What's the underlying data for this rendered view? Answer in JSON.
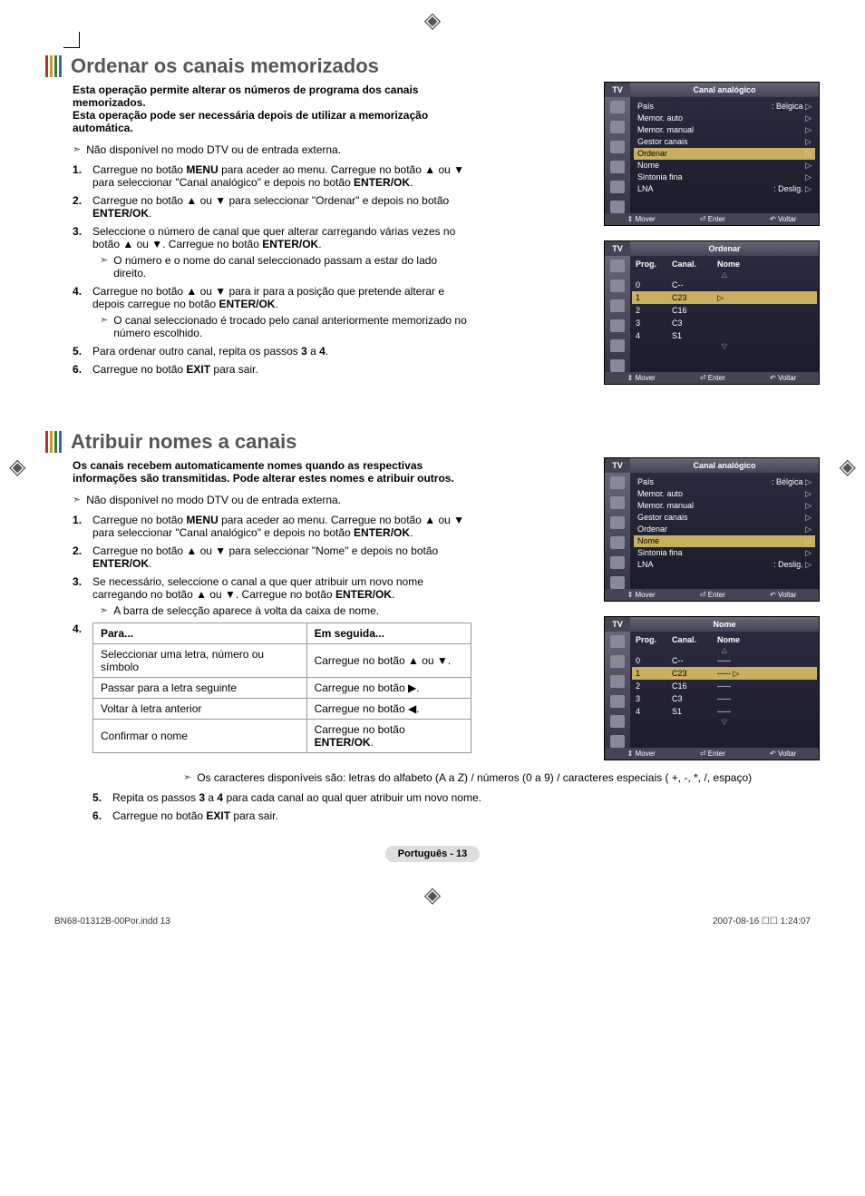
{
  "registration_glyph": "◈",
  "section1": {
    "title": "Ordenar os canais memorizados",
    "intro": "Esta operação permite alterar os números de programa dos canais memorizados.\nEsta operação pode ser necessária depois de utilizar a memorização automática.",
    "note": "Não disponível no modo DTV ou de entrada externa.",
    "steps": [
      {
        "html": "Carregue no botão <b>MENU</b> para aceder ao menu. Carregue no botão ▲ ou ▼ para seleccionar \"Canal analógico\" e depois no botão <b>ENTER/OK</b>."
      },
      {
        "html": "Carregue no botão ▲ ou ▼ para seleccionar \"Ordenar\" e depois no botão <b>ENTER/OK</b>."
      },
      {
        "html": "Seleccione o número de canal que quer alterar carregando várias vezes no botão ▲ ou ▼. Carregue no botão <b>ENTER/OK</b>.",
        "sub": "O número e o nome do canal seleccionado passam a estar do lado direito."
      },
      {
        "html": "Carregue no botão ▲ ou ▼ para ir para a posição que pretende alterar e depois carregue no botão <b>ENTER/OK</b>.",
        "sub": "O canal seleccionado é trocado pelo canal anteriormente memorizado no número escolhido."
      },
      {
        "html": "Para ordenar outro canal, repita os passos <b>3</b> a <b>4</b>."
      },
      {
        "html": "Carregue no botão <b>EXIT</b> para sair."
      }
    ],
    "menu1": {
      "tv": "TV",
      "title": "Canal analógico",
      "rows": [
        [
          "País",
          ": Bélgica"
        ],
        [
          "Memor. auto",
          ""
        ],
        [
          "Memor. manual",
          ""
        ],
        [
          "Gestor canais",
          ""
        ],
        [
          "Ordenar",
          ""
        ],
        [
          "Nome",
          ""
        ],
        [
          "Sintonia fina",
          ""
        ],
        [
          "LNA",
          ": Deslig."
        ]
      ],
      "highlight_index": 4,
      "footer": [
        "⇕ Mover",
        "⏎ Enter",
        "↶ Voltar"
      ]
    },
    "menu2": {
      "tv": "TV",
      "title": "Ordenar",
      "head": [
        "Prog.",
        "Canal.",
        "Nome"
      ],
      "rows": [
        [
          "0",
          "C--",
          ""
        ],
        [
          "1",
          "C23",
          ""
        ],
        [
          "2",
          "C16",
          ""
        ],
        [
          "3",
          "C3",
          ""
        ],
        [
          "4",
          "S1",
          ""
        ]
      ],
      "highlight_index": 1,
      "footer": [
        "⇕ Mover",
        "⏎ Enter",
        "↶ Voltar"
      ]
    }
  },
  "section2": {
    "title": "Atribuir nomes a canais",
    "intro": "Os canais recebem automaticamente nomes quando as respectivas informações são transmitidas. Pode alterar estes nomes e atribuir outros.",
    "note": "Não disponível no modo DTV ou de entrada externa.",
    "steps": [
      {
        "html": "Carregue no botão <b>MENU</b> para aceder ao menu. Carregue no botão ▲ ou ▼ para seleccionar \"Canal analógico\" e depois no botão <b>ENTER/OK</b>."
      },
      {
        "html": "Carregue no botão ▲ ou ▼ para seleccionar \"Nome\" e depois no botão <b>ENTER/OK</b>."
      },
      {
        "html": "Se necessário, seleccione o canal a que quer atribuir um novo nome carregando no botão ▲ ou ▼. Carregue no botão <b>ENTER/OK</b>.",
        "sub": "A barra de selecção aparece à volta da caixa de nome."
      }
    ],
    "table": {
      "head": [
        "Para...",
        "Em seguida..."
      ],
      "rows": [
        [
          "Seleccionar uma letra, número ou símbolo",
          "Carregue no botão ▲ ou ▼."
        ],
        [
          "Passar para a letra seguinte",
          "Carregue no botão ▶."
        ],
        [
          "Voltar à letra anterior",
          "Carregue no botão ◀."
        ],
        [
          "Confirmar o nome",
          "Carregue no botão <b>ENTER/OK</b>."
        ]
      ]
    },
    "after_table_note": "Os caracteres disponíveis são: letras do alfabeto (A a Z) / números (0 a 9) / caracteres especiais ( +, -, *, /, espaço)",
    "steps_after": [
      {
        "html": "Repita os passos <b>3</b> a <b>4</b> para cada canal ao qual quer atribuir um novo nome."
      },
      {
        "html": "Carregue no botão <b>EXIT</b> para sair."
      }
    ],
    "menu1": {
      "tv": "TV",
      "title": "Canal analógico",
      "rows": [
        [
          "País",
          ": Bélgica"
        ],
        [
          "Memor. auto",
          ""
        ],
        [
          "Memor. manual",
          ""
        ],
        [
          "Gestor canais",
          ""
        ],
        [
          "Ordenar",
          ""
        ],
        [
          "Nome",
          ""
        ],
        [
          "Sintonia fina",
          ""
        ],
        [
          "LNA",
          ": Deslig."
        ]
      ],
      "highlight_index": 5,
      "footer": [
        "⇕ Mover",
        "⏎ Enter",
        "↶ Voltar"
      ]
    },
    "menu2": {
      "tv": "TV",
      "title": "Nome",
      "head": [
        "Prog.",
        "Canal.",
        "Nome"
      ],
      "rows": [
        [
          "0",
          "C--",
          "-----"
        ],
        [
          "1",
          "C23",
          "-----"
        ],
        [
          "2",
          "C16",
          "-----"
        ],
        [
          "3",
          "C3",
          "-----"
        ],
        [
          "4",
          "S1",
          "-----"
        ]
      ],
      "highlight_index": 1,
      "footer": [
        "⇕ Mover",
        "⏎ Enter",
        "↶ Voltar"
      ]
    }
  },
  "page_badge": "Português - 13",
  "footer": {
    "left": "BN68-01312B-00Por.indd   13",
    "right": "2007-08-16   ☐☐ 1:24:07"
  },
  "colors": {
    "title_gray": "#555555",
    "menu_bg_top": "#2c2c40",
    "menu_bg_bottom": "#1a1a28",
    "menu_highlight": "#c9b060",
    "table_border": "#999999",
    "badge_bg": "#dddddd"
  }
}
